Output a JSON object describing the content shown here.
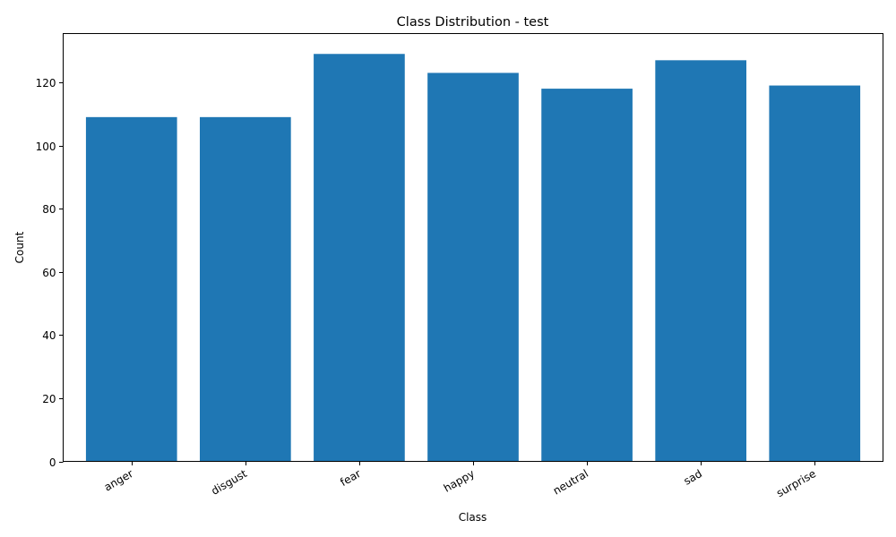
{
  "chart_data": {
    "type": "bar",
    "title": "Class Distribution - test",
    "xlabel": "Class",
    "ylabel": "Count",
    "categories": [
      "anger",
      "disgust",
      "fear",
      "happy",
      "neutral",
      "sad",
      "surprise"
    ],
    "values": [
      109,
      109,
      129,
      123,
      118,
      127,
      119
    ],
    "ylim": [
      0,
      135.45
    ],
    "yticks": [
      0,
      20,
      40,
      60,
      80,
      100,
      120
    ],
    "grid": false,
    "legend": "none",
    "bar_color": "#1f77b4"
  }
}
